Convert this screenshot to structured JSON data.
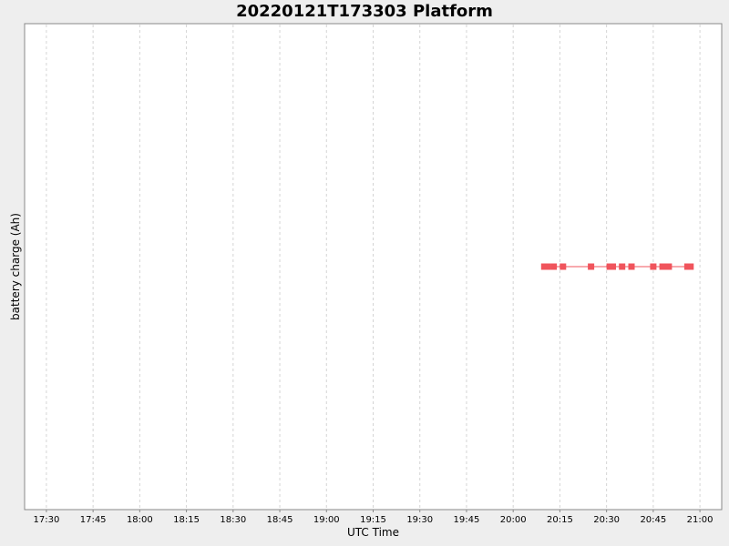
{
  "chart_data": {
    "type": "line",
    "title": "20220121T173303 Platform",
    "xlabel": "UTC Time",
    "ylabel": "battery charge (Ah)",
    "x_ticks": [
      "17:30",
      "17:45",
      "18:00",
      "18:15",
      "18:30",
      "18:45",
      "19:00",
      "19:15",
      "19:30",
      "19:45",
      "20:00",
      "20:15",
      "20:30",
      "20:45",
      "21:00"
    ],
    "xlim": [
      "17:23",
      "21:07"
    ],
    "grid": {
      "x": true,
      "y": false
    },
    "series": [
      {
        "color": "#f0545c",
        "marker": "square",
        "points": [
          {
            "x": "20:10",
            "y": 0
          },
          {
            "x": "20:11",
            "y": 0
          },
          {
            "x": "20:13",
            "y": 0
          },
          {
            "x": "20:16",
            "y": 0
          },
          {
            "x": "20:25",
            "y": 0
          },
          {
            "x": "20:31",
            "y": 0
          },
          {
            "x": "20:32",
            "y": 0
          },
          {
            "x": "20:35",
            "y": 0
          },
          {
            "x": "20:38",
            "y": 0
          },
          {
            "x": "20:45",
            "y": 0
          },
          {
            "x": "20:48",
            "y": 0
          },
          {
            "x": "20:50",
            "y": 0
          },
          {
            "x": "20:56",
            "y": 0
          },
          {
            "x": "20:57",
            "y": 0
          }
        ]
      }
    ]
  }
}
